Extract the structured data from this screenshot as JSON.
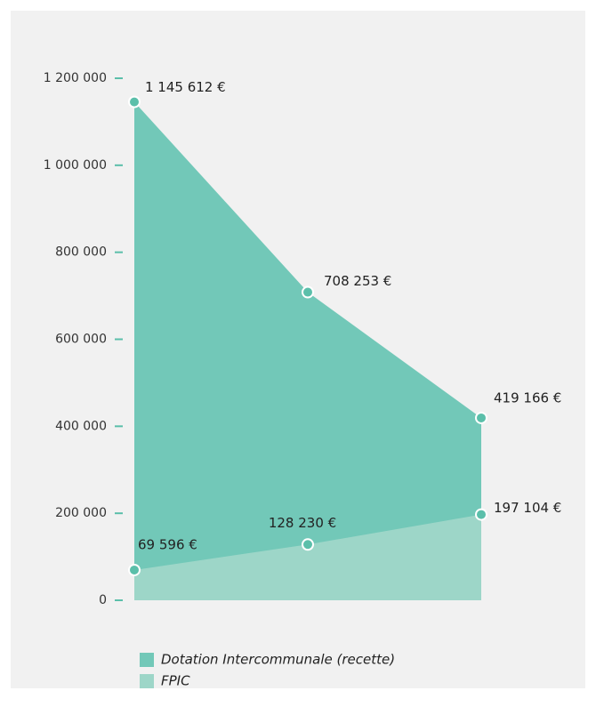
{
  "chart_data": {
    "type": "area",
    "categories": [
      null,
      null,
      null
    ],
    "series": [
      {
        "name": "Dotation Intercommunale (recette)",
        "color": "#72c8b8",
        "values": [
          1145612,
          708253,
          419166
        ],
        "value_labels": [
          "1 145 612 €",
          "708 253 €",
          "419 166 €"
        ]
      },
      {
        "name": "FPIC",
        "color": "#9dd6c8",
        "values": [
          69596,
          128230,
          197104
        ],
        "value_labels": [
          "69 596 €",
          "128 230 €",
          "197 104 €"
        ]
      }
    ],
    "ylim": [
      0,
      1200000
    ],
    "yticks": [
      0,
      {
        "value": 200000,
        "label": "200 000"
      },
      {
        "value": 400000,
        "label": "400 000"
      },
      {
        "value": 600000,
        "label": "600 000"
      },
      {
        "value": 800000,
        "label": "800 000"
      },
      {
        "value": 1000000,
        "label": "1 000 000"
      },
      {
        "value": 1200000,
        "label": "1 200 000"
      }
    ],
    "point_color": "#5bbfaa",
    "tick_color": "#5bbfaa"
  }
}
